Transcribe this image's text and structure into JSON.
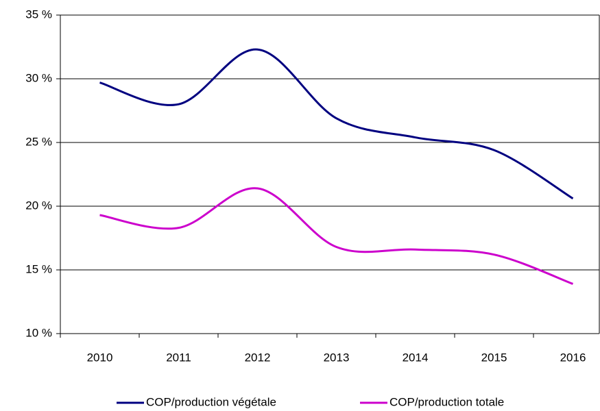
{
  "chart_data": {
    "type": "line",
    "categories": [
      "2010",
      "2011",
      "2012",
      "2013",
      "2014",
      "2015",
      "2016"
    ],
    "series": [
      {
        "name": "COP/production végétale",
        "color": "#000080",
        "values": [
          29.7,
          28.0,
          32.3,
          26.9,
          25.4,
          24.4,
          20.6
        ]
      },
      {
        "name": "COP/production totale",
        "color": "#cc00cc",
        "values": [
          19.3,
          18.3,
          21.4,
          16.8,
          16.6,
          16.2,
          13.9
        ]
      }
    ],
    "ylim": [
      10,
      35
    ],
    "yticks": [
      {
        "value": 10,
        "label": "10 %"
      },
      {
        "value": 15,
        "label": "15 %"
      },
      {
        "value": 20,
        "label": "20 %"
      },
      {
        "value": 25,
        "label": "25 %"
      },
      {
        "value": 30,
        "label": "30 %"
      },
      {
        "value": 35,
        "label": "35 %"
      }
    ],
    "grid": true,
    "smooth": true,
    "legend": "bottom"
  }
}
